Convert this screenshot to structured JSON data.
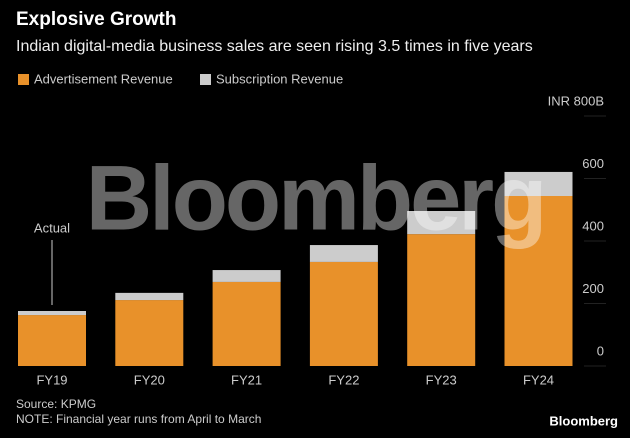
{
  "chart_data": {
    "type": "stacked-bar",
    "title": "Explosive Growth",
    "subtitle": "Indian digital-media business sales are seen rising 3.5 times in five years",
    "categories": [
      "FY19",
      "FY20",
      "FY21",
      "FY22",
      "FY23",
      "FY24"
    ],
    "series": [
      {
        "name": "Advertisement Revenue",
        "color": "#e8912a",
        "values": [
          163,
          211,
          269,
          333,
          422,
          544
        ]
      },
      {
        "name": "Subscription Revenue",
        "color": "#cccccc",
        "values": [
          13,
          23,
          38,
          54,
          74,
          77
        ]
      }
    ],
    "ylim": [
      0,
      800
    ],
    "yticks": [
      0,
      200,
      400,
      600,
      {
        "value": 800,
        "label": "INR 800B"
      }
    ],
    "annotation": "Actual",
    "source": "Source: KPMG",
    "note": "NOTE: Financial year runs from April to March",
    "watermark": "Bloomberg",
    "logo": "Bloomberg"
  }
}
